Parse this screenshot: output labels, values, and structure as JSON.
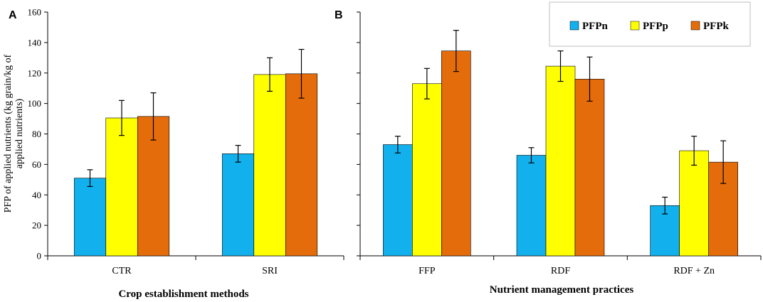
{
  "chart_data": [
    {
      "panel": "A",
      "type": "bar",
      "categories": [
        "CTR",
        "SRI"
      ],
      "series": [
        {
          "name": "PFPn",
          "color": "#12b0ec",
          "values": [
            51,
            67
          ],
          "errors": [
            5.5,
            5.5
          ]
        },
        {
          "name": "PFPp",
          "color": "#ffff00",
          "values": [
            90.5,
            119
          ],
          "errors": [
            11.5,
            11
          ]
        },
        {
          "name": "PFPk",
          "color": "#e46c0a",
          "values": [
            91.5,
            119.5
          ],
          "errors": [
            15.5,
            16
          ]
        }
      ],
      "xlabel": "Crop establishment methods",
      "ylabel": "PFP of applied nutrients (kg grain/kg of applied nutrients)",
      "ylim": [
        0,
        160
      ],
      "yticks": [
        0,
        20,
        40,
        60,
        80,
        100,
        120,
        140,
        160
      ]
    },
    {
      "panel": "B",
      "type": "bar",
      "categories": [
        "FFP",
        "RDF",
        "RDF + Zn"
      ],
      "series": [
        {
          "name": "PFPn",
          "color": "#12b0ec",
          "values": [
            73,
            66,
            33
          ],
          "errors": [
            5.5,
            5,
            5.5
          ]
        },
        {
          "name": "PFPp",
          "color": "#ffff00",
          "values": [
            113,
            124.5,
            69
          ],
          "errors": [
            10,
            10,
            9.5
          ]
        },
        {
          "name": "PFPk",
          "color": "#e46c0a",
          "values": [
            134.5,
            116,
            61.5
          ],
          "errors": [
            13.5,
            14.5,
            14
          ]
        }
      ],
      "xlabel": "Nutrient management practices",
      "ylabel": "",
      "ylim": [
        0,
        160
      ],
      "yticks": [
        0,
        20,
        40,
        60,
        80,
        100,
        120,
        140,
        160
      ],
      "legend": "top-right"
    }
  ],
  "legend": {
    "items": [
      "PFPn",
      "PFPp",
      "PFPk"
    ]
  }
}
